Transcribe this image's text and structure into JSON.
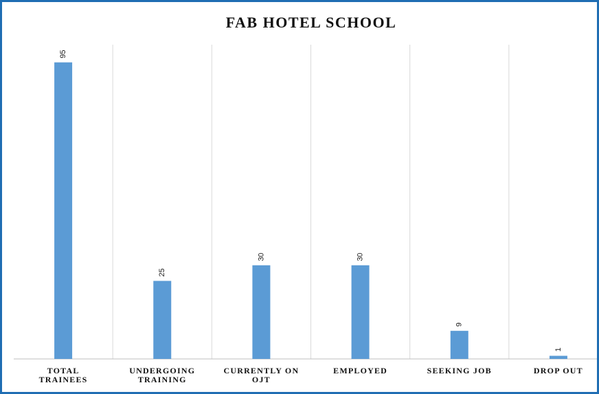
{
  "chart_data": {
    "type": "bar",
    "title": "FAB HOTEL SCHOOL",
    "categories": [
      "TOTAL\nTRAINEES",
      "UNDERGOING\nTRAINING",
      "CURRENTLY ON\nOJT",
      "EMPLOYED",
      "SEEKING JOB",
      "DROP OUT"
    ],
    "values": [
      95,
      25,
      30,
      30,
      9,
      1
    ],
    "color": "#5b9bd5",
    "ylim": [
      0,
      100
    ],
    "grid": true
  }
}
